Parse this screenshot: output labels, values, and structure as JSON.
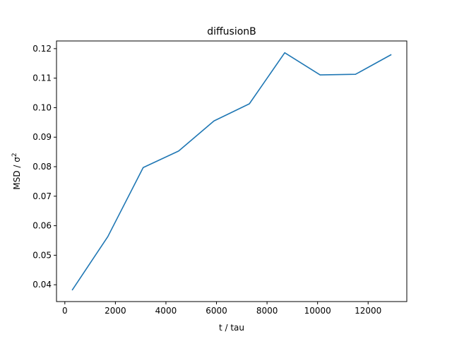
{
  "chart_data": {
    "type": "line",
    "title": "diffusionB",
    "xlabel": "t / tau",
    "ylabel": "MSD / σ",
    "ylabel_superscript": "2",
    "x": [
      300,
      1700,
      3100,
      4500,
      5900,
      7300,
      8700,
      10100,
      11500,
      12900
    ],
    "series": [
      {
        "values": [
          0.0383,
          0.0563,
          0.0797,
          0.0853,
          0.0955,
          0.1013,
          0.1186,
          0.1111,
          0.1113,
          0.1179
        ],
        "color": "#1f77b4"
      }
    ],
    "xlim": [
      -330,
      13530
    ],
    "ylim": [
      0.0343,
      0.1226
    ],
    "xticks": [
      0,
      2000,
      4000,
      6000,
      8000,
      10000,
      12000
    ],
    "xtick_labels": [
      "0",
      "2000",
      "4000",
      "6000",
      "8000",
      "10000",
      "12000"
    ],
    "yticks": [
      0.04,
      0.05,
      0.06,
      0.07,
      0.08,
      0.09,
      0.1,
      0.11,
      0.12
    ],
    "ytick_labels": [
      "0.04",
      "0.05",
      "0.06",
      "0.07",
      "0.08",
      "0.09",
      "0.10",
      "0.11",
      "0.12"
    ],
    "grid": false,
    "legend": "none"
  }
}
